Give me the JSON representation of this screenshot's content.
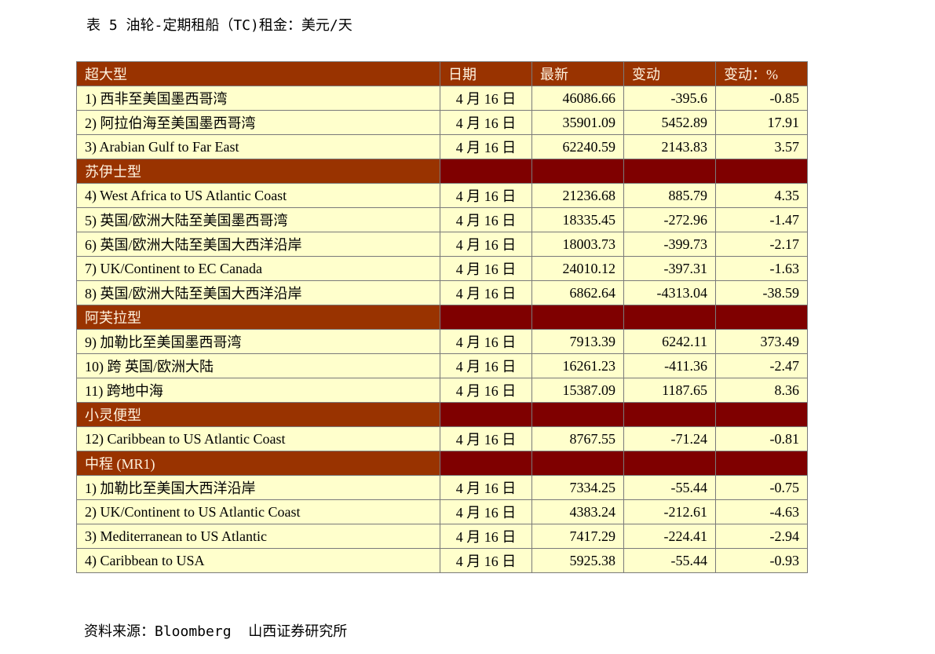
{
  "title": "表 5 油轮-定期租船（TC)租金：美元/天",
  "table": {
    "header": [
      "超大型",
      "日期",
      "最新",
      "变动",
      "变动：%"
    ],
    "rows": [
      [
        "1) 西非至美国墨西哥湾",
        "4 月 16 日",
        "46086.66",
        "-395.6",
        "-0.85"
      ],
      [
        "2) 阿拉伯海至美国墨西哥湾",
        "4 月 16 日",
        "35901.09",
        "5452.89",
        "17.91"
      ],
      [
        "3) Arabian Gulf to Far East",
        "4 月 16 日",
        "62240.59",
        "2143.83",
        "3.57"
      ],
      [
        "苏伊士型"
      ],
      [
        "4) West Africa to US Atlantic Coast",
        "4 月 16 日",
        "21236.68",
        "885.79",
        "4.35"
      ],
      [
        "5) 英国/欧洲大陆至美国墨西哥湾",
        "4 月 16 日",
        "18335.45",
        "-272.96",
        "-1.47"
      ],
      [
        "6) 英国/欧洲大陆至美国大西洋沿岸",
        "4 月 16 日",
        "18003.73",
        "-399.73",
        "-2.17"
      ],
      [
        "7) UK/Continent to EC Canada",
        "4 月 16 日",
        "24010.12",
        "-397.31",
        "-1.63"
      ],
      [
        "8) 英国/欧洲大陆至美国大西洋沿岸",
        "4 月 16 日",
        "6862.64",
        "-4313.04",
        "-38.59"
      ],
      [
        "阿芙拉型"
      ],
      [
        "9) 加勒比至美国墨西哥湾",
        "4 月 16 日",
        "7913.39",
        "6242.11",
        "373.49"
      ],
      [
        "10) 跨 英国/欧洲大陆",
        "4 月 16 日",
        "16261.23",
        "-411.36",
        "-2.47"
      ],
      [
        "11) 跨地中海",
        "4 月 16 日",
        "15387.09",
        "1187.65",
        "8.36"
      ],
      [
        "小灵便型"
      ],
      [
        "12) Caribbean to US Atlantic Coast",
        "4 月 16 日",
        "8767.55",
        "-71.24",
        "-0.81"
      ],
      [
        "中程 (MR1)"
      ],
      [
        "1) 加勒比至美国大西洋沿岸",
        "4 月 16 日",
        "7334.25",
        "-55.44",
        "-0.75"
      ],
      [
        "2) UK/Continent to US Atlantic Coast",
        "4 月 16 日",
        "4383.24",
        "-212.61",
        "-4.63"
      ],
      [
        "3) Mediterranean to US Atlantic",
        "4 月 16 日",
        "7417.29",
        "-224.41",
        "-2.94"
      ],
      [
        "4) Caribbean to USA",
        "4 月 16 日",
        "5925.38",
        "-55.44",
        "-0.93"
      ]
    ]
  },
  "source": "资料来源：Bloomberg  山西证券研究所"
}
